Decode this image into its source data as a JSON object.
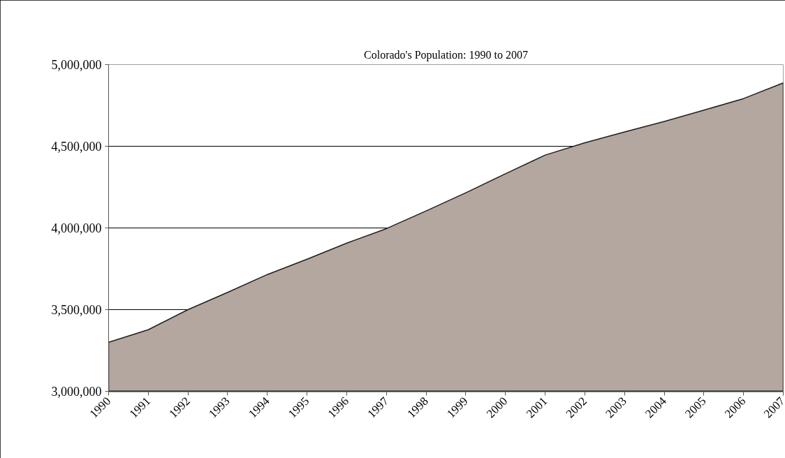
{
  "chart_data": {
    "type": "area",
    "title": "Colorado's Population: 1990 to 2007",
    "categories": [
      "1990",
      "1991",
      "1992",
      "1993",
      "1994",
      "1995",
      "1996",
      "1997",
      "1998",
      "1999",
      "2000",
      "2001",
      "2002",
      "2003",
      "2004",
      "2005",
      "2006",
      "2007"
    ],
    "values": [
      3300000,
      3377000,
      3500000,
      3606000,
      3715000,
      3809000,
      3907000,
      3996000,
      4104000,
      4215000,
      4332000,
      4446000,
      4521000,
      4588000,
      4652000,
      4721000,
      4792000,
      4888000
    ],
    "color": "#b3a79f",
    "ylim": [
      3000000,
      5000000
    ],
    "yticks": [
      {
        "value": 3000000,
        "label": "3,000,000"
      },
      {
        "value": 3500000,
        "label": "3,500,000"
      },
      {
        "value": 4000000,
        "label": "4,000,000"
      },
      {
        "value": 4500000,
        "label": "4,500,000"
      },
      {
        "value": 5000000,
        "label": "5,000,000"
      }
    ],
    "grid": "y"
  }
}
